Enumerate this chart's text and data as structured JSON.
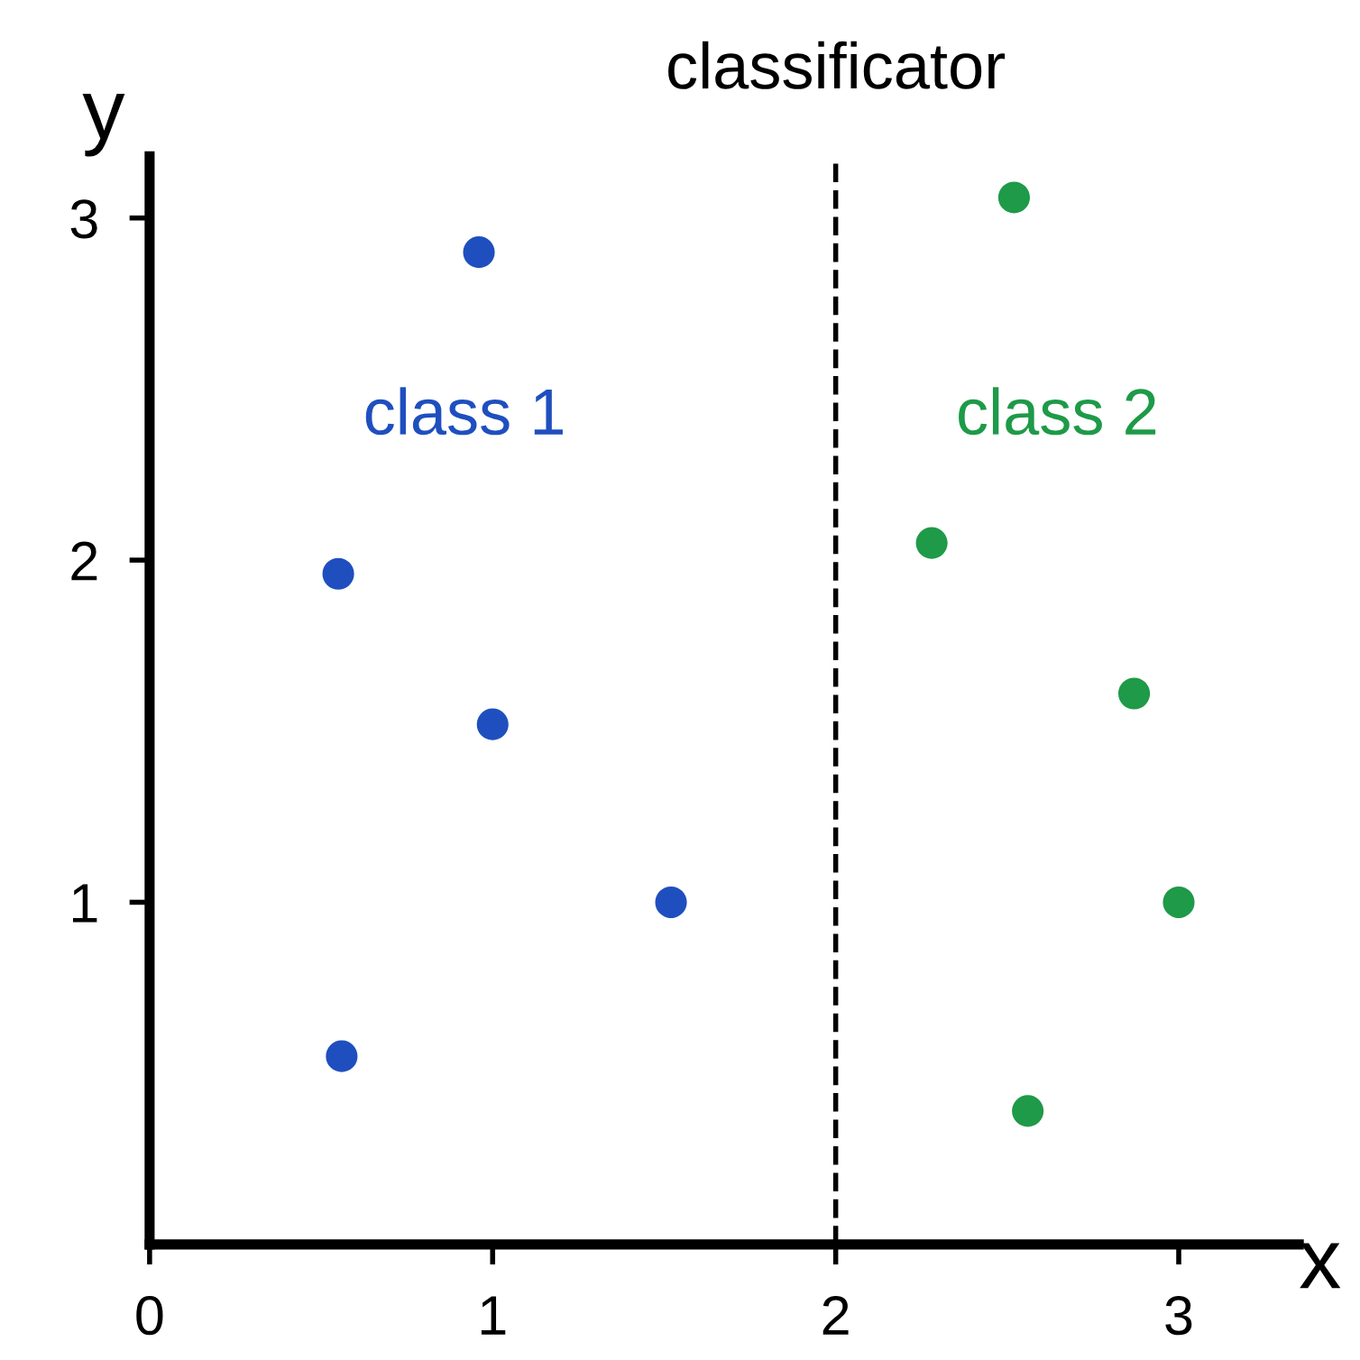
{
  "chart_data": {
    "type": "scatter",
    "xlabel": "x",
    "ylabel": "y",
    "xlim": [
      0,
      3.35
    ],
    "ylim": [
      0,
      3.18
    ],
    "xticks": [
      0,
      1,
      2,
      3
    ],
    "yticks": [
      1,
      2,
      3
    ],
    "grid": false,
    "legend": false,
    "marker": "circle",
    "ref_lines": [
      {
        "axis": "x",
        "value": 2,
        "label": "classificator",
        "line_style": "dashed",
        "color": "#000000"
      }
    ],
    "series": [
      {
        "name": "class 1",
        "color": "#1f4fbf",
        "x": [
          0.56,
          0.96,
          0.55,
          1.0,
          1.52
        ],
        "values": [
          0.55,
          2.9,
          1.96,
          1.52,
          1.0
        ]
      },
      {
        "name": "class 2",
        "color": "#1e9a48",
        "x": [
          2.52,
          2.28,
          2.87,
          3.0,
          2.56
        ],
        "values": [
          3.06,
          2.05,
          1.61,
          1.0,
          0.39
        ]
      }
    ]
  }
}
